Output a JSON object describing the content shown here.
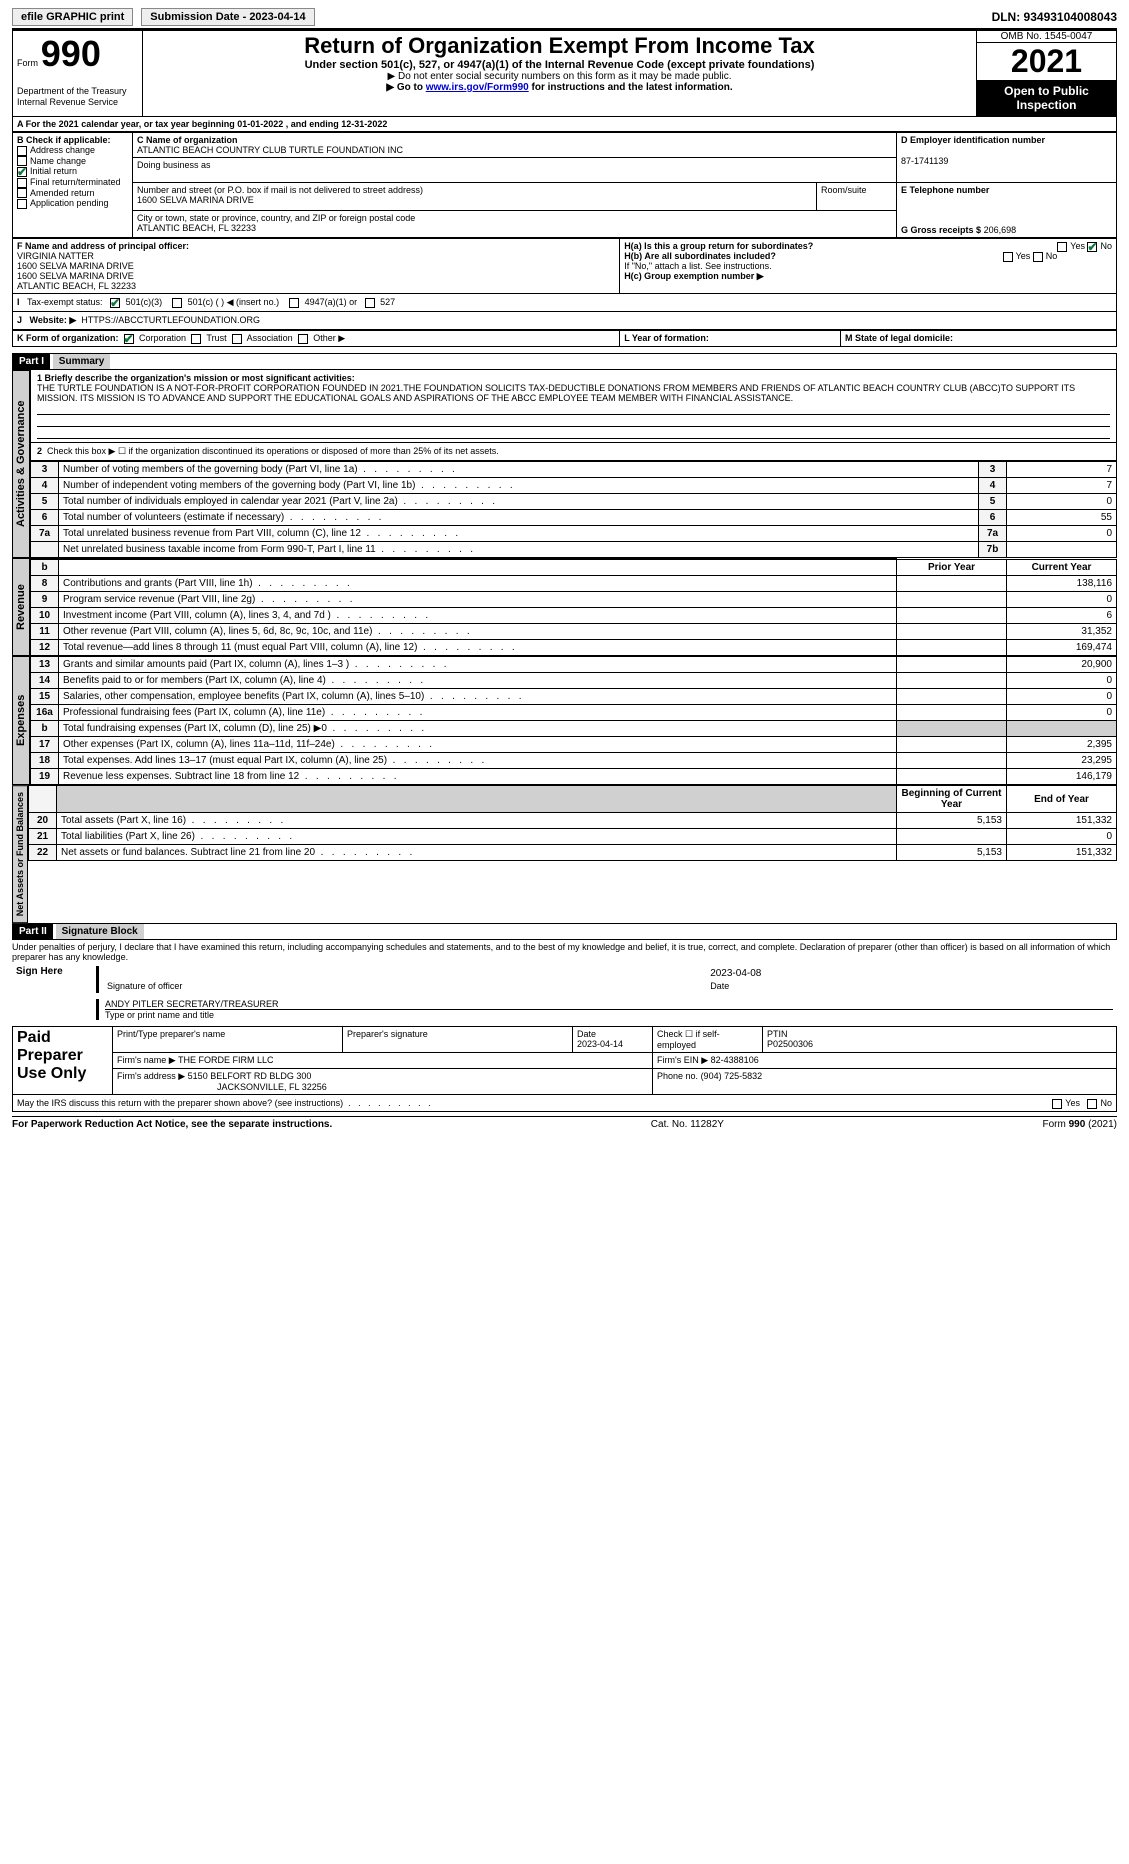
{
  "topbar": {
    "efile": "efile GRAPHIC print",
    "submission": "Submission Date - 2023-04-14",
    "dln": "DLN: 93493104008043"
  },
  "header": {
    "form_word": "Form",
    "form_num": "990",
    "title": "Return of Organization Exempt From Income Tax",
    "subtitle": "Under section 501(c), 527, or 4947(a)(1) of the Internal Revenue Code (except private foundations)",
    "hint1": "▶ Do not enter social security numbers on this form as it may be made public.",
    "hint2_pre": "▶ Go to ",
    "hint2_link": "www.irs.gov/Form990",
    "hint2_post": " for instructions and the latest information.",
    "dept": "Department of the Treasury",
    "irs": "Internal Revenue Service",
    "omb": "OMB No. 1545-0047",
    "year": "2021",
    "open": "Open to Public Inspection"
  },
  "A": {
    "text": "For the 2021 calendar year, or tax year beginning 01-01-2022   , and ending 12-31-2022"
  },
  "B": {
    "label": "B Check if applicable:",
    "items": [
      "Address change",
      "Name change",
      "Initial return",
      "Final return/terminated",
      "Amended return",
      "Application pending"
    ],
    "checked_idx": 2
  },
  "C": {
    "name_label": "C Name of organization",
    "name": "ATLANTIC BEACH COUNTRY CLUB TURTLE FOUNDATION INC",
    "dba_label": "Doing business as",
    "street_label": "Number and street (or P.O. box if mail is not delivered to street address)",
    "street": "1600 SELVA MARINA DRIVE",
    "room_label": "Room/suite",
    "city_label": "City or town, state or province, country, and ZIP or foreign postal code",
    "city": "ATLANTIC BEACH, FL  32233"
  },
  "D": {
    "label": "D Employer identification number",
    "value": "87-1741139"
  },
  "E": {
    "label": "E Telephone number"
  },
  "G": {
    "label": "G Gross receipts $",
    "value": "206,698"
  },
  "F": {
    "label": "F  Name and address of principal officer:",
    "lines": [
      "VIRGINIA NATTER",
      "1600 SELVA MARINA DRIVE",
      "1600 SELVA MARINA DRIVE",
      "ATLANTIC BEACH, FL  32233"
    ]
  },
  "H": {
    "a_label": "H(a)  Is this a group return for subordinates?",
    "a_yes": "Yes",
    "a_no": "No",
    "a_no_checked": true,
    "b_label": "H(b)  Are all subordinates included?",
    "b_yes": "Yes",
    "b_no": "No",
    "note": "If \"No,\" attach a list. See instructions.",
    "c_label": "H(c)  Group exemption number ▶"
  },
  "I": {
    "label": "Tax-exempt status:",
    "opt1": "501(c)(3)",
    "opt1_checked": true,
    "opt2": "501(c) (  ) ◀ (insert no.)",
    "opt3": "4947(a)(1) or",
    "opt4": "527"
  },
  "J": {
    "label": "Website: ▶",
    "value": "HTTPS://ABCCTURTLEFOUNDATION.ORG"
  },
  "K": {
    "label": "K Form of organization:",
    "opts": [
      "Corporation",
      "Trust",
      "Association",
      "Other ▶"
    ],
    "checked_idx": 0
  },
  "L": {
    "label": "L  Year of formation:"
  },
  "M": {
    "label": "M State of legal domicile:"
  },
  "part1": {
    "hdr": "Part I",
    "title": "Summary",
    "q1_label": "1  Briefly describe the organization's mission or most significant activities:",
    "q1_text": "THE TURTLE FOUNDATION IS A NOT-FOR-PROFIT CORPORATION FOUNDED IN 2021.THE FOUNDATION SOLICITS TAX-DEDUCTIBLE DONATIONS FROM MEMBERS AND FRIENDS OF ATLANTIC BEACH COUNTRY CLUB (ABCC)TO SUPPORT ITS MISSION. ITS MISSION IS TO ADVANCE AND SUPPORT THE EDUCATIONAL GOALS AND ASPIRATIONS OF THE ABCC EMPLOYEE TEAM MEMBER WITH FINANCIAL ASSISTANCE.",
    "q2": "Check this box ▶ ☐  if the organization discontinued its operations or disposed of more than 25% of its net assets.",
    "sideA": "Activities & Governance",
    "sideR": "Revenue",
    "sideE": "Expenses",
    "sideN": "Net Assets or Fund Balances",
    "gov_rows": [
      {
        "n": "3",
        "d": "Number of voting members of the governing body (Part VI, line 1a)",
        "box": "3",
        "v": "7"
      },
      {
        "n": "4",
        "d": "Number of independent voting members of the governing body (Part VI, line 1b)",
        "box": "4",
        "v": "7"
      },
      {
        "n": "5",
        "d": "Total number of individuals employed in calendar year 2021 (Part V, line 2a)",
        "box": "5",
        "v": "0"
      },
      {
        "n": "6",
        "d": "Total number of volunteers (estimate if necessary)",
        "box": "6",
        "v": "55"
      },
      {
        "n": "7a",
        "d": "Total unrelated business revenue from Part VIII, column (C), line 12",
        "box": "7a",
        "v": "0"
      },
      {
        "n": "",
        "d": "Net unrelated business taxable income from Form 990-T, Part I, line 11",
        "box": "7b",
        "v": ""
      }
    ],
    "col_prior": "Prior Year",
    "col_curr": "Current Year",
    "rev_rows": [
      {
        "n": "8",
        "d": "Contributions and grants (Part VIII, line 1h)",
        "p": "",
        "c": "138,116"
      },
      {
        "n": "9",
        "d": "Program service revenue (Part VIII, line 2g)",
        "p": "",
        "c": "0"
      },
      {
        "n": "10",
        "d": "Investment income (Part VIII, column (A), lines 3, 4, and 7d )",
        "p": "",
        "c": "6"
      },
      {
        "n": "11",
        "d": "Other revenue (Part VIII, column (A), lines 5, 6d, 8c, 9c, 10c, and 11e)",
        "p": "",
        "c": "31,352"
      },
      {
        "n": "12",
        "d": "Total revenue—add lines 8 through 11 (must equal Part VIII, column (A), line 12)",
        "p": "",
        "c": "169,474"
      }
    ],
    "exp_rows": [
      {
        "n": "13",
        "d": "Grants and similar amounts paid (Part IX, column (A), lines 1–3 )",
        "p": "",
        "c": "20,900"
      },
      {
        "n": "14",
        "d": "Benefits paid to or for members (Part IX, column (A), line 4)",
        "p": "",
        "c": "0"
      },
      {
        "n": "15",
        "d": "Salaries, other compensation, employee benefits (Part IX, column (A), lines 5–10)",
        "p": "",
        "c": "0"
      },
      {
        "n": "16a",
        "d": "Professional fundraising fees (Part IX, column (A), line 11e)",
        "p": "",
        "c": "0"
      },
      {
        "n": "b",
        "d": "Total fundraising expenses (Part IX, column (D), line 25) ▶0",
        "p": "grey",
        "c": "grey"
      },
      {
        "n": "17",
        "d": "Other expenses (Part IX, column (A), lines 11a–11d, 11f–24e)",
        "p": "",
        "c": "2,395"
      },
      {
        "n": "18",
        "d": "Total expenses. Add lines 13–17 (must equal Part IX, column (A), line 25)",
        "p": "",
        "c": "23,295"
      },
      {
        "n": "19",
        "d": "Revenue less expenses. Subtract line 18 from line 12",
        "p": "",
        "c": "146,179"
      }
    ],
    "col_begin": "Beginning of Current Year",
    "col_end": "End of Year",
    "net_rows": [
      {
        "n": "20",
        "d": "Total assets (Part X, line 16)",
        "p": "5,153",
        "c": "151,332"
      },
      {
        "n": "21",
        "d": "Total liabilities (Part X, line 26)",
        "p": "",
        "c": "0"
      },
      {
        "n": "22",
        "d": "Net assets or fund balances. Subtract line 21 from line 20",
        "p": "5,153",
        "c": "151,332"
      }
    ]
  },
  "part2": {
    "hdr": "Part II",
    "title": "Signature Block",
    "decl": "Under penalties of perjury, I declare that I have examined this return, including accompanying schedules and statements, and to the best of my knowledge and belief, it is true, correct, and complete. Declaration of preparer (other than officer) is based on all information of which preparer has any knowledge.",
    "sign_here": "Sign Here",
    "sig_officer": "Signature of officer",
    "date": "Date",
    "date_val": "2023-04-08",
    "officer_name": "ANDY PITLER  SECRETARY/TREASURER",
    "officer_line": "Type or print name and title",
    "paid": "Paid Preparer Use Only",
    "prep_name_hdr": "Print/Type preparer's name",
    "prep_sig_hdr": "Preparer's signature",
    "prep_date_hdr": "Date",
    "prep_date": "2023-04-14",
    "self_emp": "Check ☐ if self-employed",
    "ptin_hdr": "PTIN",
    "ptin": "P02500306",
    "firm_name_label": "Firm's name    ▶",
    "firm_name": "THE FORDE FIRM LLC",
    "firm_ein_label": "Firm's EIN ▶",
    "firm_ein": "82-4388106",
    "firm_addr_label": "Firm's address ▶",
    "firm_addr1": "5150 BELFORT RD BLDG 300",
    "firm_addr2": "JACKSONVILLE, FL  32256",
    "phone_label": "Phone no.",
    "phone": "(904) 725-5832",
    "discuss": "May the IRS discuss this return with the preparer shown above? (see instructions)",
    "yes": "Yes",
    "no": "No"
  },
  "footer": {
    "left": "For Paperwork Reduction Act Notice, see the separate instructions.",
    "mid": "Cat. No. 11282Y",
    "right": "Form 990 (2021)"
  }
}
